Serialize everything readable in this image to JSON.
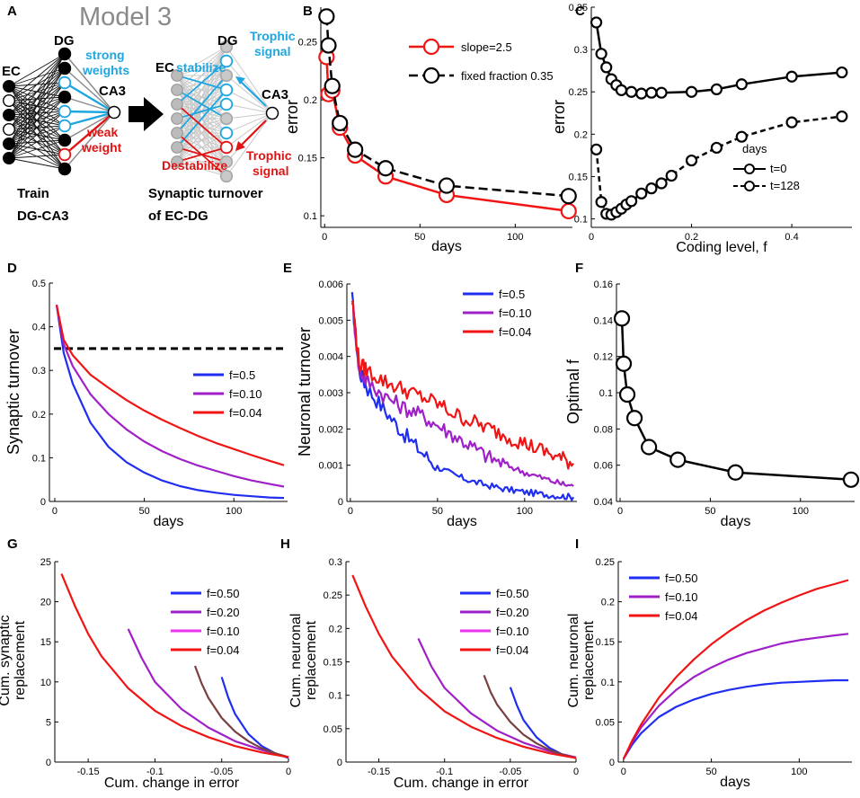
{
  "figure": {
    "panel_letters": [
      "A",
      "B",
      "C",
      "D",
      "E",
      "F",
      "G",
      "H",
      "I"
    ]
  },
  "diagram": {
    "title": "Model 3",
    "left": {
      "ec": "EC",
      "dg": "DG",
      "ca3": "CA3",
      "strong1": "strong",
      "strong2": "weights",
      "weak1": "weak",
      "weak2": "weight",
      "cap1": "Train",
      "cap2": "DG-CA3"
    },
    "right": {
      "ec": "EC",
      "dg": "DG",
      "ca3": "CA3",
      "stabilize": "stabilize",
      "destabilize": "Destabilize",
      "trophic_top1": "Trophic",
      "trophic_top2": "signal",
      "trophic_bot1": "Trophic",
      "trophic_bot2": "signal",
      "cap1": "Synaptic turnover",
      "cap2": "of EC-DG"
    }
  },
  "colors": {
    "blue": "#1f2ef0",
    "purple": "#a020c8",
    "red": "#f01414",
    "brown": "#7a4040",
    "magenta": "#ee33ee",
    "cyan": "#1fa6e0",
    "diag_red": "#e01414"
  },
  "chart_data": [
    {
      "id": "B",
      "type": "line",
      "xlabel": "days",
      "ylabel": "error",
      "xlim": [
        -2,
        130
      ],
      "ylim": [
        0.09,
        0.28
      ],
      "xticks": [
        0,
        50,
        100
      ],
      "xtick_labels": [
        "0",
        "50",
        "100"
      ],
      "yticks": [
        0.1,
        0.15,
        0.2,
        0.25
      ],
      "ytick_labels": [
        "0.1",
        "0.15",
        "0.2",
        "0.25"
      ],
      "x": [
        1,
        2,
        4,
        8,
        16,
        32,
        64,
        128
      ],
      "series": [
        {
          "name": "slope=2.5",
          "values": [
            0.237,
            0.205,
            0.208,
            0.176,
            0.152,
            0.134,
            0.118,
            0.104
          ],
          "color": "#f01414",
          "dash": false
        },
        {
          "name": "fixed fraction 0.35",
          "values": [
            0.272,
            0.247,
            0.212,
            0.18,
            0.157,
            0.141,
            0.126,
            0.117
          ],
          "color": "#000000",
          "dash": true
        }
      ],
      "legend": {
        "location": "top-right",
        "entries": [
          "slope=2.5",
          "fixed fraction 0.35"
        ]
      }
    },
    {
      "id": "C",
      "type": "line",
      "xlabel": "Coding level, f",
      "ylabel": "error",
      "xlim": [
        0,
        0.52
      ],
      "ylim": [
        0.09,
        0.35
      ],
      "xticks": [
        0,
        0.2,
        0.4
      ],
      "xtick_labels": [
        "0",
        "0.2",
        "0.4"
      ],
      "yticks": [
        0.1,
        0.15,
        0.2,
        0.25,
        0.3,
        0.35
      ],
      "ytick_labels": [
        "0.1",
        "0.15",
        "0.2",
        "0.25",
        "0.3",
        "0.35"
      ],
      "series": [
        {
          "name": "t=0",
          "dash": false,
          "x": [
            0.01,
            0.02,
            0.03,
            0.04,
            0.05,
            0.06,
            0.08,
            0.1,
            0.12,
            0.14,
            0.2,
            0.25,
            0.3,
            0.4,
            0.5
          ],
          "values": [
            0.332,
            0.295,
            0.279,
            0.265,
            0.258,
            0.252,
            0.25,
            0.248,
            0.249,
            0.249,
            0.25,
            0.253,
            0.259,
            0.268,
            0.273
          ]
        },
        {
          "name": "t=128",
          "dash": true,
          "x": [
            0.01,
            0.02,
            0.03,
            0.04,
            0.05,
            0.06,
            0.07,
            0.08,
            0.1,
            0.12,
            0.14,
            0.16,
            0.2,
            0.25,
            0.3,
            0.4,
            0.5
          ],
          "values": [
            0.182,
            0.12,
            0.106,
            0.105,
            0.108,
            0.112,
            0.117,
            0.121,
            0.13,
            0.136,
            0.142,
            0.151,
            0.169,
            0.184,
            0.197,
            0.214,
            0.221
          ]
        }
      ],
      "legend": {
        "title": "days",
        "location": "center-right",
        "entries": [
          "t=0",
          "t=128"
        ]
      }
    },
    {
      "id": "D",
      "type": "line",
      "xlabel": "days",
      "ylabel": "Synaptic turnover",
      "xlim": [
        -3,
        130
      ],
      "ylim": [
        0,
        0.5
      ],
      "xticks": [
        0,
        50,
        100
      ],
      "xtick_labels": [
        "0",
        "50",
        "100"
      ],
      "yticks": [
        0,
        0.1,
        0.2,
        0.3,
        0.4,
        0.5
      ],
      "ytick_labels": [
        "0",
        "0.1",
        "0.2",
        "0.3",
        "0.4",
        "0.5"
      ],
      "reference_line": {
        "y": 0.35,
        "style": "dashed"
      },
      "x": [
        1,
        5,
        10,
        20,
        30,
        40,
        50,
        60,
        70,
        80,
        90,
        100,
        110,
        120,
        128
      ],
      "series": [
        {
          "name": "f=0.5",
          "values": [
            0.45,
            0.34,
            0.27,
            0.18,
            0.125,
            0.09,
            0.066,
            0.048,
            0.035,
            0.026,
            0.02,
            0.015,
            0.012,
            0.009,
            0.008
          ]
        },
        {
          "name": "f=0.10",
          "values": [
            0.45,
            0.36,
            0.31,
            0.245,
            0.2,
            0.165,
            0.137,
            0.115,
            0.097,
            0.082,
            0.07,
            0.058,
            0.048,
            0.04,
            0.034
          ]
        },
        {
          "name": "f=0.04",
          "values": [
            0.45,
            0.37,
            0.335,
            0.29,
            0.26,
            0.232,
            0.208,
            0.187,
            0.168,
            0.15,
            0.134,
            0.12,
            0.106,
            0.093,
            0.083
          ]
        }
      ],
      "legend": {
        "location": "center-right",
        "entries": [
          "f=0.5",
          "f=0.10",
          "f=0.04"
        ]
      }
    },
    {
      "id": "E",
      "type": "line",
      "xlabel": "days",
      "ylabel": "Neuronal turnover",
      "xlim": [
        -2,
        130
      ],
      "ylim": [
        0,
        0.006
      ],
      "xticks": [
        0,
        50,
        100
      ],
      "xtick_labels": [
        "0",
        "50",
        "100"
      ],
      "yticks": [
        0,
        0.001,
        0.002,
        0.003,
        0.004,
        0.005,
        0.006
      ],
      "ytick_labels": [
        "0",
        "0.001",
        "0.002",
        "0.003",
        "0.004",
        "0.005",
        "0.006"
      ],
      "x": [
        1,
        5,
        10,
        20,
        30,
        40,
        50,
        60,
        70,
        80,
        90,
        100,
        110,
        120,
        128
      ],
      "series": [
        {
          "name": "f=0.5",
          "values": [
            0.0056,
            0.0036,
            0.0031,
            0.0025,
            0.0019,
            0.0014,
            0.00095,
            0.00072,
            0.00055,
            0.00043,
            0.00033,
            0.00026,
            0.0002,
            0.00015,
            0.00012
          ]
        },
        {
          "name": "f=0.10",
          "values": [
            0.0056,
            0.0036,
            0.0033,
            0.0029,
            0.0026,
            0.0024,
            0.0021,
            0.0018,
            0.0015,
            0.0012,
            0.001,
            0.0008,
            0.00065,
            0.0005,
            0.00042
          ]
        },
        {
          "name": "f=0.04",
          "values": [
            0.0056,
            0.0038,
            0.0036,
            0.0033,
            0.0031,
            0.0029,
            0.0027,
            0.0024,
            0.0022,
            0.002,
            0.0018,
            0.0016,
            0.0014,
            0.0012,
            0.00105
          ]
        }
      ],
      "legend": {
        "location": "top-right",
        "entries": [
          "f=0.5",
          "f=0.10",
          "f=0.04"
        ]
      }
    },
    {
      "id": "F",
      "type": "line",
      "xlabel": "days",
      "ylabel": "Optimal  f",
      "xlim": [
        -2,
        130
      ],
      "ylim": [
        0.04,
        0.16
      ],
      "xticks": [
        0,
        50,
        100
      ],
      "xtick_labels": [
        "0",
        "50",
        "100"
      ],
      "yticks": [
        0.04,
        0.06,
        0.08,
        0.1,
        0.12,
        0.14,
        0.16
      ],
      "ytick_labels": [
        "0.04",
        "0.06",
        "0.08",
        "0.1",
        "0.12",
        "0.14",
        "0.16"
      ],
      "x": [
        1,
        2,
        4,
        8,
        16,
        32,
        64,
        128
      ],
      "series": [
        {
          "name": "optimal f",
          "values": [
            0.141,
            0.116,
            0.099,
            0.086,
            0.07,
            0.063,
            0.056,
            0.052
          ]
        }
      ]
    },
    {
      "id": "G",
      "type": "line",
      "xlabel": "Cum. change in error",
      "ylabel": "Cum. synaptic replacement",
      "xlim": [
        -0.175,
        0
      ],
      "ylim": [
        0,
        25
      ],
      "xticks": [
        -0.15,
        -0.1,
        -0.05,
        0
      ],
      "xtick_labels": [
        "-0.15",
        "-0.1",
        "-0.05",
        "0"
      ],
      "yticks": [
        0,
        5,
        10,
        15,
        20,
        25
      ],
      "ytick_labels": [
        "0",
        "5",
        "10",
        "15",
        "20",
        "25"
      ],
      "series": [
        {
          "name": "f=0.50",
          "x": [
            -0.05,
            -0.045,
            -0.04,
            -0.03,
            -0.02,
            -0.01,
            0
          ],
          "values": [
            10.6,
            8,
            6,
            3.5,
            2,
            1.1,
            0.5
          ]
        },
        {
          "name": "f=0.20",
          "x": [
            -0.12,
            -0.11,
            -0.1,
            -0.08,
            -0.06,
            -0.04,
            -0.02,
            0
          ],
          "values": [
            16.6,
            13,
            10,
            6.6,
            4.3,
            2.6,
            1.5,
            0.6
          ]
        },
        {
          "name": "f=0.10",
          "x": [
            -0.07,
            -0.065,
            -0.06,
            -0.05,
            -0.04,
            -0.03,
            -0.02,
            -0.01,
            0
          ],
          "values": [
            12,
            9.8,
            8,
            5.5,
            3.8,
            2.6,
            1.7,
            1.1,
            0.6
          ]
        },
        {
          "name": "f=0.04",
          "x": [
            -0.17,
            -0.16,
            -0.15,
            -0.14,
            -0.12,
            -0.1,
            -0.08,
            -0.06,
            -0.04,
            -0.02,
            0
          ],
          "values": [
            23.5,
            19.5,
            16,
            13.2,
            9.2,
            6.4,
            4.5,
            3.1,
            2,
            1.2,
            0.6
          ]
        }
      ],
      "legend": {
        "location": "top-right",
        "entries": [
          "f=0.50",
          "f=0.20",
          "f=0.10",
          "f=0.04"
        ]
      }
    },
    {
      "id": "H",
      "type": "line",
      "xlabel": "Cum. change in error",
      "ylabel": "Cum. neuronal replacement",
      "xlim": [
        -0.175,
        0
      ],
      "ylim": [
        0,
        0.3
      ],
      "xticks": [
        -0.15,
        -0.1,
        -0.05,
        0
      ],
      "xtick_labels": [
        "-0.15",
        "-0.1",
        "-0.05",
        "0"
      ],
      "yticks": [
        0,
        0.05,
        0.1,
        0.15,
        0.2,
        0.25,
        0.3
      ],
      "ytick_labels": [
        "0",
        "0.05",
        "0.1",
        "0.15",
        "0.2",
        "0.25",
        "0.3"
      ],
      "series": [
        {
          "name": "f=0.50",
          "x": [
            -0.05,
            -0.045,
            -0.04,
            -0.03,
            -0.02,
            -0.01,
            0
          ],
          "values": [
            0.112,
            0.085,
            0.063,
            0.037,
            0.021,
            0.011,
            0.006
          ]
        },
        {
          "name": "f=0.20",
          "x": [
            -0.12,
            -0.11,
            -0.1,
            -0.08,
            -0.06,
            -0.04,
            -0.02,
            0
          ],
          "values": [
            0.185,
            0.143,
            0.111,
            0.073,
            0.047,
            0.029,
            0.016,
            0.007
          ]
        },
        {
          "name": "f=0.10",
          "x": [
            -0.07,
            -0.065,
            -0.06,
            -0.05,
            -0.04,
            -0.03,
            -0.02,
            -0.01,
            0
          ],
          "values": [
            0.13,
            0.105,
            0.086,
            0.06,
            0.041,
            0.028,
            0.018,
            0.011,
            0.006
          ]
        },
        {
          "name": "f=0.04",
          "x": [
            -0.17,
            -0.16,
            -0.15,
            -0.14,
            -0.12,
            -0.1,
            -0.08,
            -0.06,
            -0.04,
            -0.02,
            0
          ],
          "values": [
            0.28,
            0.233,
            0.192,
            0.158,
            0.11,
            0.076,
            0.053,
            0.036,
            0.023,
            0.013,
            0.006
          ]
        }
      ],
      "legend": {
        "location": "top-right",
        "entries": [
          "f=0.50",
          "f=0.20",
          "f=0.10",
          "f=0.04"
        ]
      }
    },
    {
      "id": "I",
      "type": "line",
      "xlabel": "days",
      "ylabel": "Cum. neuronal replacement",
      "xlim": [
        -3,
        130
      ],
      "ylim": [
        0,
        0.25
      ],
      "xticks": [
        0,
        50,
        100
      ],
      "xtick_labels": [
        "0",
        "50",
        "100"
      ],
      "yticks": [
        0,
        0.05,
        0.1,
        0.15,
        0.2,
        0.25
      ],
      "ytick_labels": [
        "0",
        "0.05",
        "0.1",
        "0.15",
        "0.2",
        "0.25"
      ],
      "x": [
        0,
        5,
        10,
        20,
        30,
        40,
        50,
        60,
        70,
        80,
        90,
        100,
        110,
        120,
        128
      ],
      "series": [
        {
          "name": "f=0.50",
          "values": [
            0.004,
            0.022,
            0.036,
            0.056,
            0.069,
            0.078,
            0.085,
            0.09,
            0.094,
            0.097,
            0.099,
            0.1,
            0.101,
            0.102,
            0.102
          ]
        },
        {
          "name": "f=0.10",
          "values": [
            0.004,
            0.025,
            0.043,
            0.07,
            0.09,
            0.106,
            0.118,
            0.128,
            0.136,
            0.142,
            0.148,
            0.152,
            0.155,
            0.158,
            0.16
          ]
        },
        {
          "name": "f=0.04",
          "values": [
            0.004,
            0.027,
            0.047,
            0.08,
            0.106,
            0.128,
            0.147,
            0.163,
            0.177,
            0.189,
            0.199,
            0.208,
            0.216,
            0.222,
            0.227
          ]
        }
      ],
      "legend": {
        "location": "top-left",
        "entries": [
          "f=0.50",
          "f=0.10",
          "f=0.04"
        ]
      }
    }
  ]
}
